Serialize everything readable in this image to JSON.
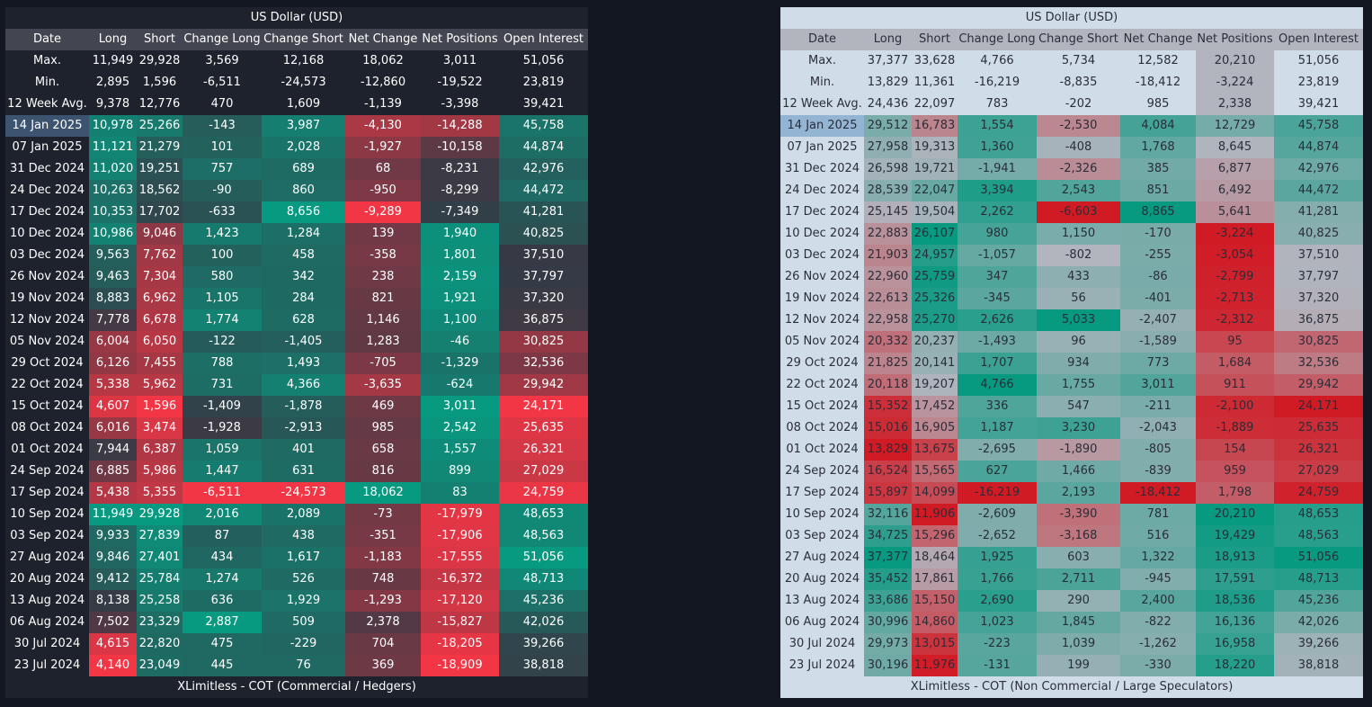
{
  "columns": [
    "Date",
    "Long",
    "Short",
    "Change Long",
    "Change Short",
    "Net Change",
    "Net Positions",
    "Open Interest"
  ],
  "stat_labels": [
    "Max.",
    "Min.",
    "12 Week Avg."
  ],
  "colors": {
    "dark_pos": "#089981",
    "dark_neg": "#f23645",
    "dark_mid": "#363a45",
    "light_pos": "#089981",
    "light_neg": "#d01b25",
    "light_mid": "#b2b5be"
  },
  "commercial": {
    "title": "US Dollar (USD)",
    "footer": "XLimitless - COT (Commercial / Hedgers)",
    "stats": [
      [
        "11,949",
        "29,928",
        "3,569",
        "12,168",
        "18,062",
        "3,011",
        "51,056"
      ],
      [
        "2,895",
        "1,596",
        "-6,511",
        "-24,573",
        "-12,860",
        "-19,522",
        "23,819"
      ],
      [
        "9,378",
        "12,776",
        "470",
        "1,609",
        "-1,139",
        "-3,398",
        "39,421"
      ]
    ],
    "rows": [
      [
        "14 Jan 2025",
        "10,978",
        "25,266",
        "-143",
        "3,987",
        "-4,130",
        "-14,288",
        "45,758"
      ],
      [
        "07 Jan 2025",
        "11,121",
        "21,279",
        "101",
        "2,028",
        "-1,927",
        "-10,158",
        "44,874"
      ],
      [
        "31 Dec 2024",
        "11,020",
        "19,251",
        "757",
        "689",
        "68",
        "-8,231",
        "42,976"
      ],
      [
        "24 Dec 2024",
        "10,263",
        "18,562",
        "-90",
        "860",
        "-950",
        "-8,299",
        "44,472"
      ],
      [
        "17 Dec 2024",
        "10,353",
        "17,702",
        "-633",
        "8,656",
        "-9,289",
        "-7,349",
        "41,281"
      ],
      [
        "10 Dec 2024",
        "10,986",
        "9,046",
        "1,423",
        "1,284",
        "139",
        "1,940",
        "40,825"
      ],
      [
        "03 Dec 2024",
        "9,563",
        "7,762",
        "100",
        "458",
        "-358",
        "1,801",
        "37,510"
      ],
      [
        "26 Nov 2024",
        "9,463",
        "7,304",
        "580",
        "342",
        "238",
        "2,159",
        "37,797"
      ],
      [
        "19 Nov 2024",
        "8,883",
        "6,962",
        "1,105",
        "284",
        "821",
        "1,921",
        "37,320"
      ],
      [
        "12 Nov 2024",
        "7,778",
        "6,678",
        "1,774",
        "628",
        "1,146",
        "1,100",
        "36,875"
      ],
      [
        "05 Nov 2024",
        "6,004",
        "6,050",
        "-122",
        "-1,405",
        "1,283",
        "-46",
        "30,825"
      ],
      [
        "29 Oct 2024",
        "6,126",
        "7,455",
        "788",
        "1,493",
        "-705",
        "-1,329",
        "32,536"
      ],
      [
        "22 Oct 2024",
        "5,338",
        "5,962",
        "731",
        "4,366",
        "-3,635",
        "-624",
        "29,942"
      ],
      [
        "15 Oct 2024",
        "4,607",
        "1,596",
        "-1,409",
        "-1,878",
        "469",
        "3,011",
        "24,171"
      ],
      [
        "08 Oct 2024",
        "6,016",
        "3,474",
        "-1,928",
        "-2,913",
        "985",
        "2,542",
        "25,635"
      ],
      [
        "01 Oct 2024",
        "7,944",
        "6,387",
        "1,059",
        "401",
        "658",
        "1,557",
        "26,321"
      ],
      [
        "24 Sep 2024",
        "6,885",
        "5,986",
        "1,447",
        "631",
        "816",
        "899",
        "27,029"
      ],
      [
        "17 Sep 2024",
        "5,438",
        "5,355",
        "-6,511",
        "-24,573",
        "18,062",
        "83",
        "24,759"
      ],
      [
        "10 Sep 2024",
        "11,949",
        "29,928",
        "2,016",
        "2,089",
        "-73",
        "-17,979",
        "48,653"
      ],
      [
        "03 Sep 2024",
        "9,933",
        "27,839",
        "87",
        "438",
        "-351",
        "-17,906",
        "48,563"
      ],
      [
        "27 Aug 2024",
        "9,846",
        "27,401",
        "434",
        "1,617",
        "-1,183",
        "-17,555",
        "51,056"
      ],
      [
        "20 Aug 2024",
        "9,412",
        "25,784",
        "1,274",
        "526",
        "748",
        "-16,372",
        "48,713"
      ],
      [
        "13 Aug 2024",
        "8,138",
        "25,258",
        "636",
        "1,929",
        "-1,293",
        "-17,120",
        "45,236"
      ],
      [
        "06 Aug 2024",
        "7,502",
        "23,329",
        "2,887",
        "509",
        "2,378",
        "-15,827",
        "42,026"
      ],
      [
        "30 Jul 2024",
        "4,615",
        "22,820",
        "475",
        "-229",
        "704",
        "-18,205",
        "39,266"
      ],
      [
        "23 Jul 2024",
        "4,140",
        "23,049",
        "445",
        "76",
        "369",
        "-18,909",
        "38,818"
      ]
    ]
  },
  "noncommercial": {
    "title": "US Dollar (USD)",
    "footer": "XLimitless - COT (Non Commercial / Large Speculators)",
    "stats": [
      [
        "37,377",
        "33,628",
        "4,766",
        "5,734",
        "12,582",
        "20,210",
        "51,056"
      ],
      [
        "13,829",
        "11,361",
        "-16,219",
        "-8,835",
        "-18,412",
        "-3,224",
        "23,819"
      ],
      [
        "24,436",
        "22,097",
        "783",
        "-202",
        "985",
        "2,338",
        "39,421"
      ]
    ],
    "rows": [
      [
        "14 Jan 2025",
        "29,512",
        "16,783",
        "1,554",
        "-2,530",
        "4,084",
        "12,729",
        "45,758"
      ],
      [
        "07 Jan 2025",
        "27,958",
        "19,313",
        "1,360",
        "-408",
        "1,768",
        "8,645",
        "44,874"
      ],
      [
        "31 Dec 2024",
        "26,598",
        "19,721",
        "-1,941",
        "-2,326",
        "385",
        "6,877",
        "42,976"
      ],
      [
        "24 Dec 2024",
        "28,539",
        "22,047",
        "3,394",
        "2,543",
        "851",
        "6,492",
        "44,472"
      ],
      [
        "17 Dec 2024",
        "25,145",
        "19,504",
        "2,262",
        "-6,603",
        "8,865",
        "5,641",
        "41,281"
      ],
      [
        "10 Dec 2024",
        "22,883",
        "26,107",
        "980",
        "1,150",
        "-170",
        "-3,224",
        "40,825"
      ],
      [
        "03 Dec 2024",
        "21,903",
        "24,957",
        "-1,057",
        "-802",
        "-255",
        "-3,054",
        "37,510"
      ],
      [
        "26 Nov 2024",
        "22,960",
        "25,759",
        "347",
        "433",
        "-86",
        "-2,799",
        "37,797"
      ],
      [
        "19 Nov 2024",
        "22,613",
        "25,326",
        "-345",
        "56",
        "-401",
        "-2,713",
        "37,320"
      ],
      [
        "12 Nov 2024",
        "22,958",
        "25,270",
        "2,626",
        "5,033",
        "-2,407",
        "-2,312",
        "36,875"
      ],
      [
        "05 Nov 2024",
        "20,332",
        "20,237",
        "-1,493",
        "96",
        "-1,589",
        "95",
        "30,825"
      ],
      [
        "29 Oct 2024",
        "21,825",
        "20,141",
        "1,707",
        "934",
        "773",
        "1,684",
        "32,536"
      ],
      [
        "22 Oct 2024",
        "20,118",
        "19,207",
        "4,766",
        "1,755",
        "3,011",
        "911",
        "29,942"
      ],
      [
        "15 Oct 2024",
        "15,352",
        "17,452",
        "336",
        "547",
        "-211",
        "-2,100",
        "24,171"
      ],
      [
        "08 Oct 2024",
        "15,016",
        "16,905",
        "1,187",
        "3,230",
        "-2,043",
        "-1,889",
        "25,635"
      ],
      [
        "01 Oct 2024",
        "13,829",
        "13,675",
        "-2,695",
        "-1,890",
        "-805",
        "154",
        "26,321"
      ],
      [
        "24 Sep 2024",
        "16,524",
        "15,565",
        "627",
        "1,466",
        "-839",
        "959",
        "27,029"
      ],
      [
        "17 Sep 2024",
        "15,897",
        "14,099",
        "-16,219",
        "2,193",
        "-18,412",
        "1,798",
        "24,759"
      ],
      [
        "10 Sep 2024",
        "32,116",
        "11,906",
        "-2,609",
        "-3,390",
        "781",
        "20,210",
        "48,653"
      ],
      [
        "03 Sep 2024",
        "34,725",
        "15,296",
        "-2,652",
        "-3,168",
        "516",
        "19,429",
        "48,563"
      ],
      [
        "27 Aug 2024",
        "37,377",
        "18,464",
        "1,925",
        "603",
        "1,322",
        "18,913",
        "51,056"
      ],
      [
        "20 Aug 2024",
        "35,452",
        "17,861",
        "1,766",
        "2,711",
        "-945",
        "17,591",
        "48,713"
      ],
      [
        "13 Aug 2024",
        "33,686",
        "15,150",
        "2,690",
        "290",
        "2,400",
        "18,536",
        "45,236"
      ],
      [
        "06 Aug 2024",
        "30,996",
        "14,860",
        "1,023",
        "1,845",
        "-822",
        "16,136",
        "42,026"
      ],
      [
        "30 Jul 2024",
        "29,973",
        "13,015",
        "-223",
        "1,039",
        "-1,262",
        "16,958",
        "39,266"
      ],
      [
        "23 Jul 2024",
        "30,196",
        "11,976",
        "-131",
        "199",
        "-330",
        "18,220",
        "38,818"
      ]
    ]
  }
}
